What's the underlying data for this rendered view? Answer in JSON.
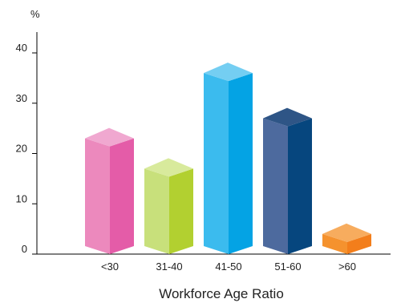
{
  "chart_data": {
    "type": "bar",
    "title": "Workforce Age Ratio",
    "ylabel": "%",
    "xlabel": "",
    "categories": [
      "<30",
      "31-40",
      "41-50",
      "51-60",
      ">60"
    ],
    "values": [
      23,
      17,
      36,
      27,
      4
    ],
    "ylim": [
      0,
      40
    ],
    "yticks": [
      0,
      10,
      20,
      30,
      40
    ],
    "grid": false,
    "style": "3d-bar",
    "colors": [
      {
        "front": "#ec89bd",
        "side": "#e45ca8",
        "top": "#f0a8d0"
      },
      {
        "front": "#c8e07b",
        "side": "#b2d030",
        "top": "#d8ea9c"
      },
      {
        "front": "#3bbbee",
        "side": "#04a3e4",
        "top": "#74cef2"
      },
      {
        "front": "#4d6a9e",
        "side": "#06467e",
        "top": "#2e5586"
      },
      {
        "front": "#f5922e",
        "side": "#f37e1b",
        "top": "#f7ac5e"
      }
    ]
  }
}
